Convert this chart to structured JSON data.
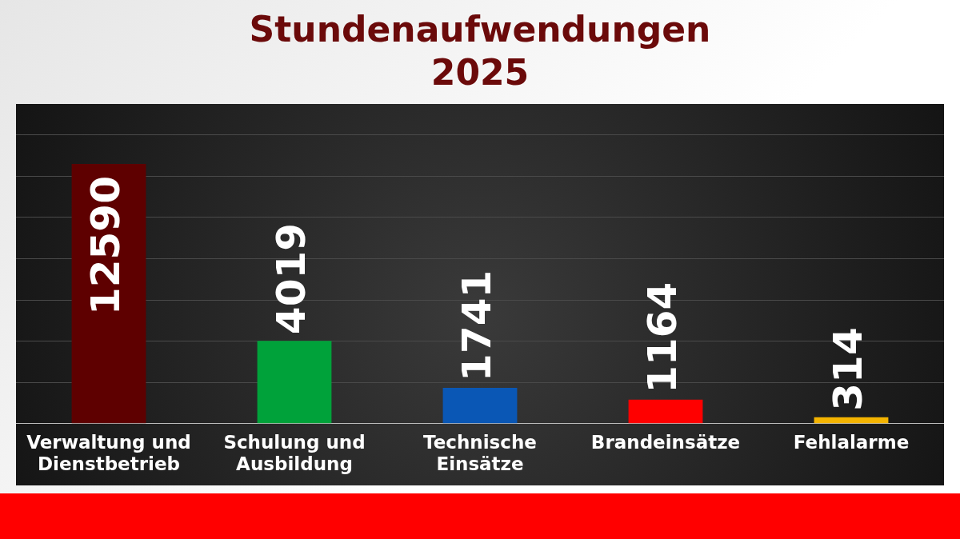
{
  "chart_data": {
    "type": "bar",
    "title": "Stundenaufwendungen 2025",
    "categories": [
      "Verwaltung und Dienstbetrieb",
      "Schulung und Ausbildung",
      "Technische Einsätze",
      "Brandeinsätze",
      "Fehlalarme"
    ],
    "values": [
      12590,
      4019,
      1741,
      1164,
      314
    ],
    "colors": [
      "#5e0000",
      "#00a23a",
      "#0a57b5",
      "#ff0000",
      "#f4b400"
    ],
    "data_labels": true,
    "grid": "y",
    "legend": false,
    "tick_labels": "x",
    "ylim": [
      0,
      15500
    ],
    "yticks": [
      {
        "value": 0,
        "label": null
      },
      {
        "value": 2000,
        "label": null
      },
      {
        "value": 4000,
        "label": null
      },
      {
        "value": 6000,
        "label": null
      },
      {
        "value": 8000,
        "label": null
      },
      {
        "value": 10000,
        "label": null
      },
      {
        "value": 12000,
        "label": null
      },
      {
        "value": 14000,
        "label": null
      }
    ]
  }
}
